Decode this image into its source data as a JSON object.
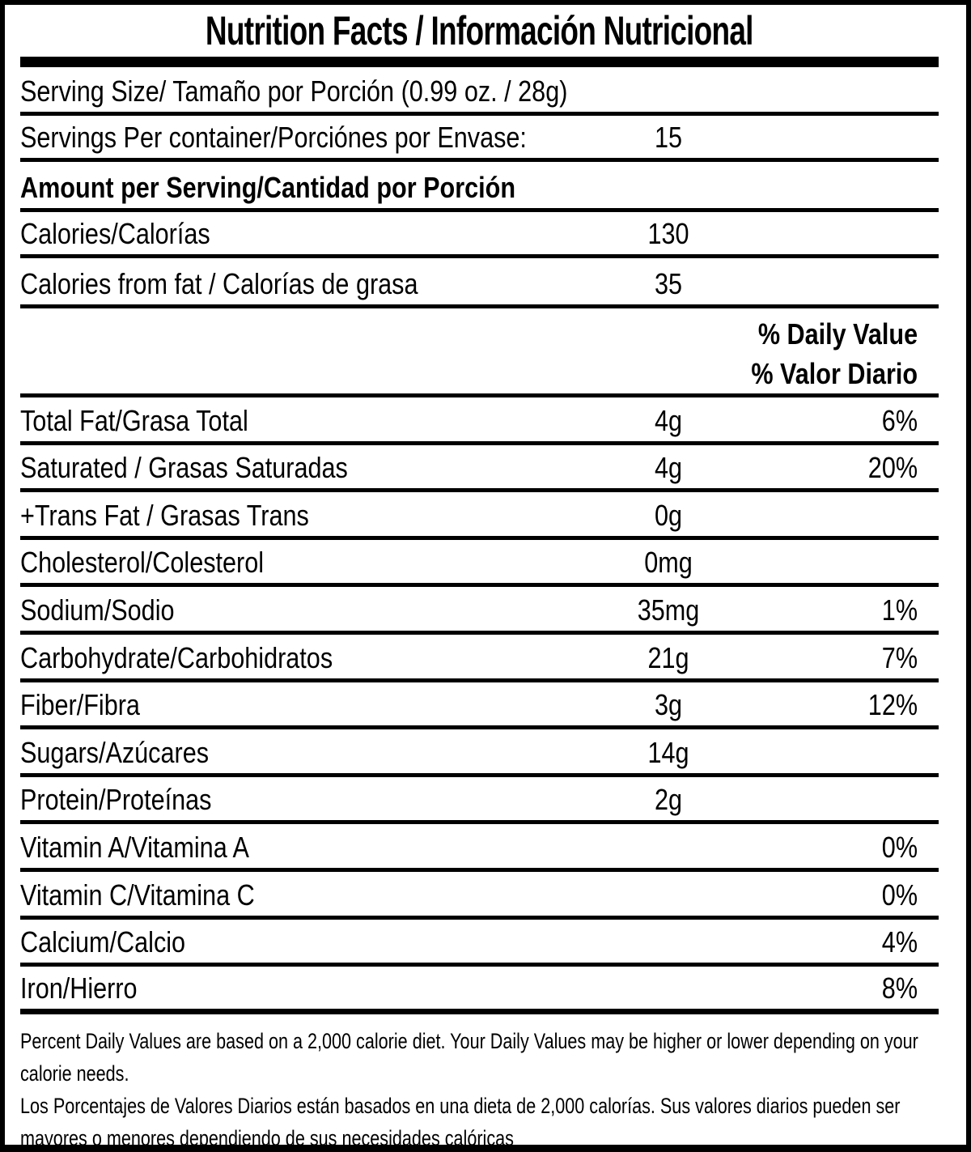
{
  "title": "Nutrition Facts / Información Nutricional",
  "serving": {
    "serving_size_label": "Serving Size/ Tamaño por Porción  (0.99 oz. / 28g)",
    "servings_per_container_label": "Servings Per container/Porciónes por Envase:",
    "servings_per_container_value": "15"
  },
  "amount_header": "Amount per Serving/Cantidad por Porción",
  "calories_rows": [
    {
      "label": "Calories/Calorías",
      "amount": "130",
      "percent": ""
    },
    {
      "label": "Calories from fat / Calorías de grasa",
      "amount": "35",
      "percent": ""
    }
  ],
  "daily_value_header": {
    "line1": "% Daily Value",
    "line2": "% Valor Diario"
  },
  "nutrient_rows": [
    {
      "label": "Total Fat/Grasa Total",
      "amount": "4g",
      "percent": "6%"
    },
    {
      "label": "Saturated / Grasas Saturadas",
      "amount": "4g",
      "percent": "20%"
    },
    {
      "label": "+Trans Fat / Grasas Trans",
      "amount": "0g",
      "percent": ""
    },
    {
      "label": "Cholesterol/Colesterol",
      "amount": "0mg",
      "percent": ""
    },
    {
      "label": "Sodium/Sodio",
      "amount": "35mg",
      "percent": "1%"
    },
    {
      "label": "Carbohydrate/Carbohidratos",
      "amount": "21g",
      "percent": "7%"
    },
    {
      "label": "Fiber/Fibra",
      "amount": "3g",
      "percent": "12%"
    },
    {
      "label": "Sugars/Azúcares",
      "amount": "14g",
      "percent": ""
    },
    {
      "label": "Protein/Proteínas",
      "amount": "2g",
      "percent": ""
    },
    {
      "label": "Vitamin A/Vitamina A",
      "amount": "",
      "percent": "0%"
    },
    {
      "label": "Vitamin C/Vitamina C",
      "amount": "",
      "percent": "0%"
    },
    {
      "label": "Calcium/Calcio",
      "amount": "",
      "percent": "4%"
    },
    {
      "label": "Iron/Hierro",
      "amount": "",
      "percent": "8%"
    }
  ],
  "footnotes": {
    "english": "Percent Daily Values are based on a 2,000 calorie diet. Your Daily Values may be higher or lower depending on your calorie needs.",
    "spanish": "Los Porcentajes de Valores Diarios están basados en una dieta de 2,000 calorías. Sus valores diarios pueden ser mayores o menores dependiendo de sus necesidades calóricas"
  },
  "colors": {
    "text": "#000000",
    "background": "#ffffff"
  }
}
